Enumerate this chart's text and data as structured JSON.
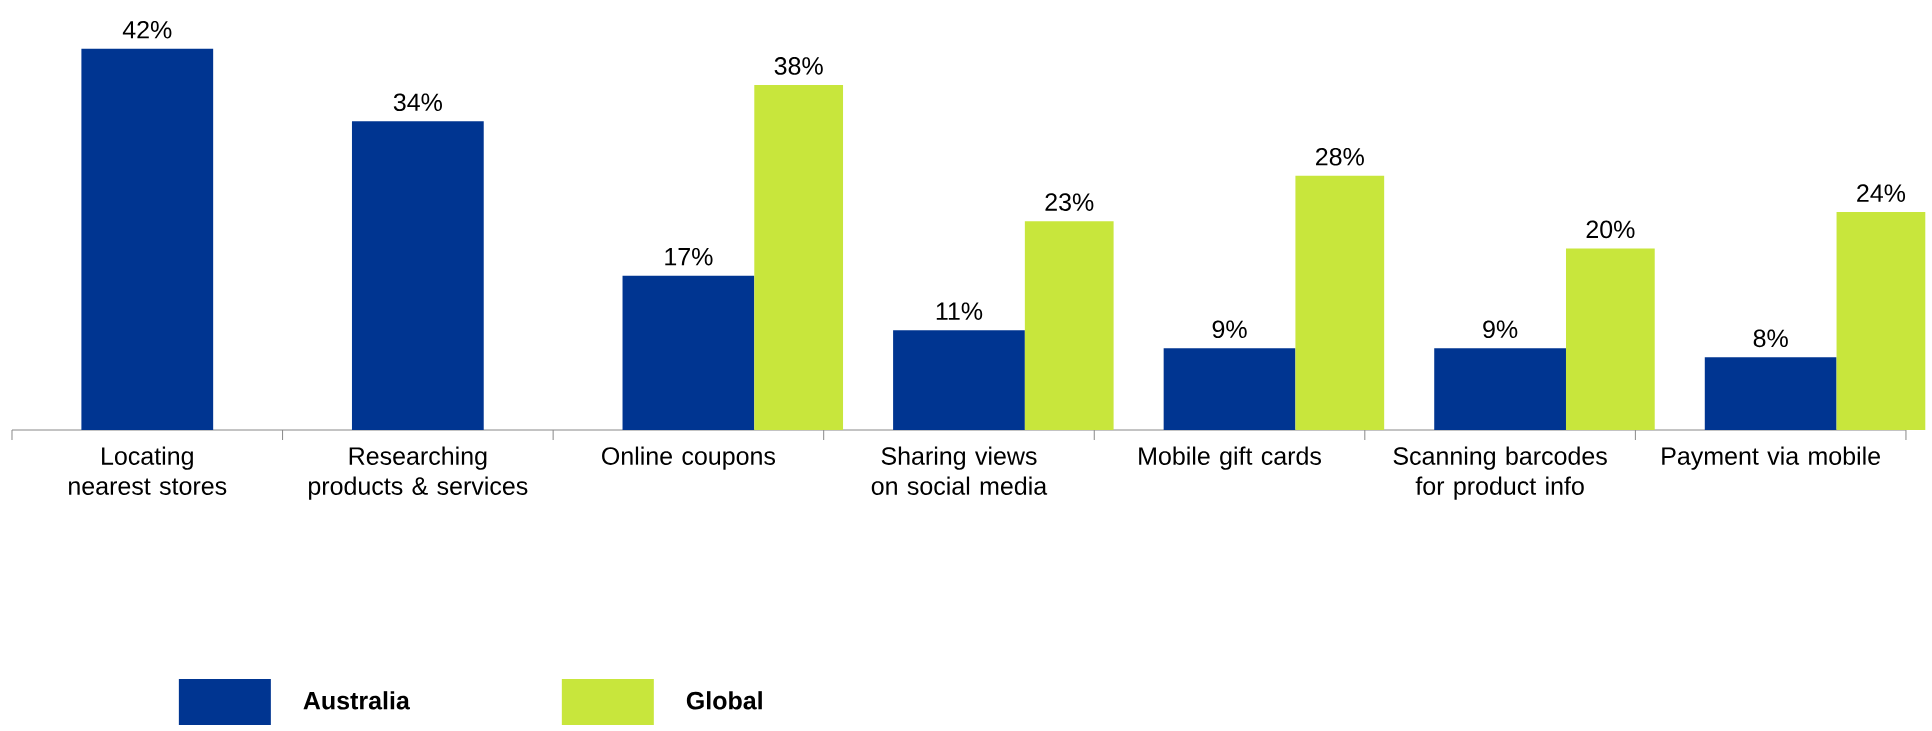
{
  "chart_data": {
    "type": "bar",
    "categories": [
      "Locating nearest stores",
      "Researching products & services",
      "Online coupons",
      "Sharing views on social media",
      "Mobile gift cards",
      "Scanning barcodes for product info",
      "Payment via mobile"
    ],
    "series": [
      {
        "name": "Australia",
        "color": "#003591",
        "values": [
          42,
          34,
          17,
          11,
          9,
          9,
          8
        ],
        "value_labels": [
          "42%",
          "34%",
          "17%",
          "11%",
          "9%",
          "9%",
          "8%"
        ]
      },
      {
        "name": "Global",
        "color": "#c8e63c",
        "values": [
          null,
          null,
          38,
          23,
          28,
          20,
          24
        ],
        "value_labels": [
          null,
          null,
          "38%",
          "23%",
          "28%",
          "20%",
          "24%"
        ]
      }
    ],
    "legend": "bottom left"
  }
}
